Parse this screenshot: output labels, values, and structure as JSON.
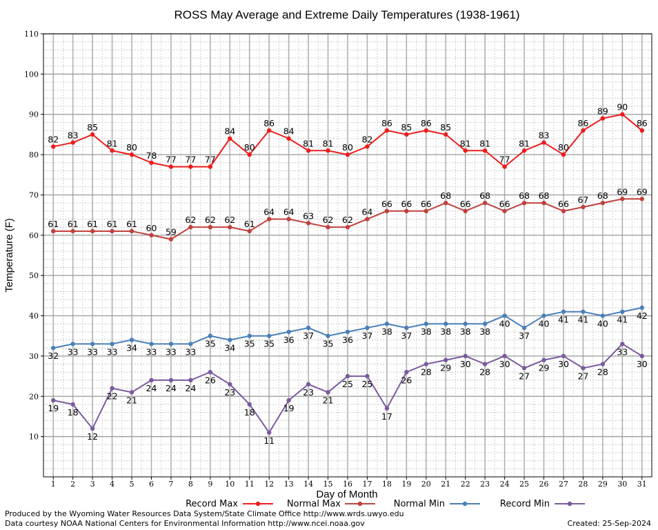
{
  "chart_data": {
    "type": "line",
    "title": "ROSS May Average and Extreme Daily Temperatures (1938-1961)",
    "xlabel": "Day of Month",
    "ylabel": "Temperature (F)",
    "x": [
      1,
      2,
      3,
      4,
      5,
      6,
      7,
      8,
      9,
      10,
      11,
      12,
      13,
      14,
      15,
      16,
      17,
      18,
      19,
      20,
      21,
      22,
      23,
      24,
      25,
      26,
      27,
      28,
      29,
      30,
      31
    ],
    "xlim": [
      0.5,
      31.5
    ],
    "ylim": [
      0,
      110
    ],
    "yticks": [
      10,
      20,
      30,
      40,
      50,
      60,
      70,
      80,
      90,
      100,
      110
    ],
    "grid": true,
    "legend_position": "bottom",
    "series": [
      {
        "name": "Record Max",
        "color": "#ee1c1c",
        "label_position": "above",
        "values": [
          82,
          83,
          85,
          81,
          80,
          78,
          77,
          77,
          77,
          84,
          80,
          86,
          84,
          81,
          81,
          80,
          82,
          86,
          85,
          86,
          85,
          81,
          81,
          77,
          81,
          83,
          80,
          86,
          89,
          90,
          86
        ]
      },
      {
        "name": "Normal Max",
        "color": "#c0403c",
        "label_position": "above",
        "values": [
          61,
          61,
          61,
          61,
          61,
          60,
          59,
          62,
          62,
          62,
          61,
          64,
          64,
          63,
          62,
          62,
          64,
          66,
          66,
          66,
          68,
          66,
          68,
          66,
          68,
          68,
          66,
          67,
          68,
          69,
          69
        ]
      },
      {
        "name": "Normal Min",
        "color": "#4a7fb8",
        "label_position": "below",
        "values": [
          32,
          33,
          33,
          33,
          34,
          33,
          33,
          33,
          35,
          34,
          35,
          35,
          36,
          37,
          35,
          36,
          37,
          38,
          37,
          38,
          38,
          38,
          38,
          40,
          37,
          40,
          41,
          41,
          40,
          41,
          42
        ]
      },
      {
        "name": "Record Min",
        "color": "#7a5a9e",
        "label_position": "below",
        "values": [
          19,
          18,
          12,
          22,
          21,
          24,
          24,
          24,
          26,
          23,
          18,
          11,
          19,
          23,
          21,
          25,
          25,
          17,
          26,
          28,
          29,
          30,
          28,
          30,
          27,
          29,
          30,
          27,
          28,
          33,
          30
        ]
      }
    ]
  },
  "footer": {
    "produced_by": "Produced by the Wyoming Water Resources Data System/State Climate Office http://www.wrds.uwyo.edu",
    "courtesy": "Data courtesy NOAA National Centers for Environmental Information http://www.ncei.noaa.gov",
    "created": "Created:  25-Sep-2024"
  }
}
